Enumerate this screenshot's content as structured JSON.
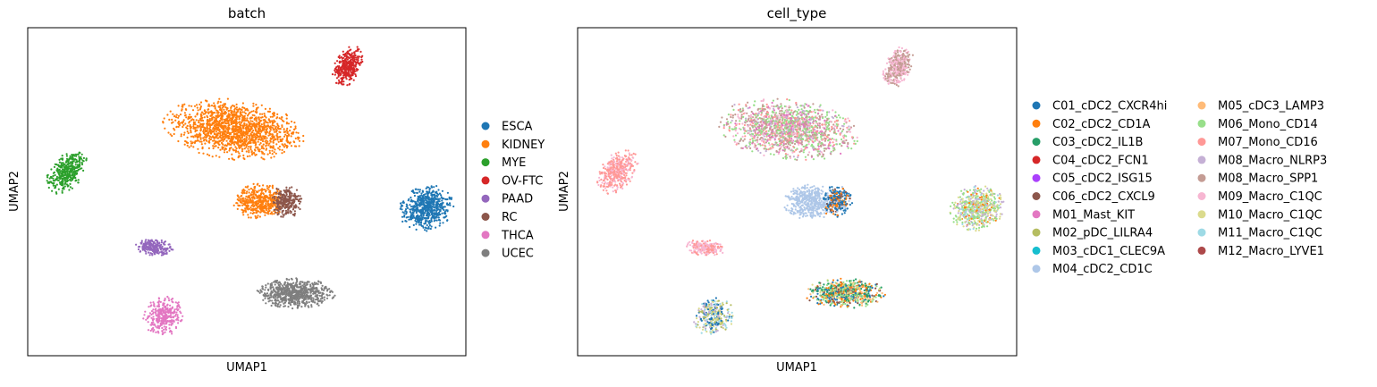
{
  "chart_data": [
    {
      "type": "scatter",
      "title": "batch",
      "xlabel": "UMAP1",
      "ylabel": "UMAP2",
      "xlim": [
        0,
        10
      ],
      "ylim": [
        0,
        10
      ],
      "grid": false,
      "ticks": false,
      "legend": "right",
      "series": [
        {
          "name": "ESCA",
          "color": "#1f77b4",
          "clusters": [
            {
              "cx": 9.1,
              "cy": 4.5,
              "rx": 0.6,
              "ry": 0.7,
              "rot": -20,
              "n": 600
            }
          ]
        },
        {
          "name": "KIDNEY",
          "color": "#ff7f0e",
          "clusters": [
            {
              "cx": 4.7,
              "cy": 6.9,
              "rx": 1.6,
              "ry": 0.9,
              "rot": -10,
              "n": 1500
            },
            {
              "cx": 5.3,
              "cy": 4.7,
              "rx": 0.6,
              "ry": 0.55,
              "rot": 0,
              "n": 450
            }
          ]
        },
        {
          "name": "MYE",
          "color": "#2ca02c",
          "clusters": [
            {
              "cx": 0.9,
              "cy": 5.6,
              "rx": 0.4,
              "ry": 0.7,
              "rot": -25,
              "n": 380
            }
          ]
        },
        {
          "name": "OV-FTC",
          "color": "#d62728",
          "clusters": [
            {
              "cx": 7.3,
              "cy": 8.8,
              "rx": 0.3,
              "ry": 0.65,
              "rot": -15,
              "n": 360
            }
          ]
        },
        {
          "name": "PAAD",
          "color": "#9467bd",
          "clusters": [
            {
              "cx": 2.9,
              "cy": 3.3,
              "rx": 0.45,
              "ry": 0.25,
              "rot": -10,
              "n": 220
            }
          ]
        },
        {
          "name": "RC",
          "color": "#8c564b",
          "clusters": [
            {
              "cx": 5.9,
              "cy": 4.7,
              "rx": 0.35,
              "ry": 0.5,
              "rot": 0,
              "n": 260
            }
          ]
        },
        {
          "name": "THCA",
          "color": "#e377c2",
          "clusters": [
            {
              "cx": 3.1,
              "cy": 1.2,
              "rx": 0.45,
              "ry": 0.6,
              "rot": -10,
              "n": 320
            }
          ]
        },
        {
          "name": "UCEC",
          "color": "#7f7f7f",
          "clusters": [
            {
              "cx": 6.1,
              "cy": 1.9,
              "rx": 0.9,
              "ry": 0.45,
              "rot": 0,
              "n": 700
            }
          ]
        }
      ]
    },
    {
      "type": "scatter",
      "title": "cell_type",
      "xlabel": "UMAP1",
      "ylabel": "UMAP2",
      "xlim": [
        0,
        10
      ],
      "ylim": [
        0,
        10
      ],
      "grid": false,
      "ticks": false,
      "legend": "right",
      "legend_columns": 2,
      "series": [
        {
          "name": "C01_cDC2_CXCR4hi",
          "color": "#1f77b4"
        },
        {
          "name": "C02_cDC2_CD1A",
          "color": "#ff7f0e"
        },
        {
          "name": "C03_cDC2_IL1B",
          "color": "#279e68"
        },
        {
          "name": "C04_cDC2_FCN1",
          "color": "#d62728"
        },
        {
          "name": "C05_cDC2_ISG15",
          "color": "#aa40fc"
        },
        {
          "name": "C06_cDC2_CXCL9",
          "color": "#8c564b"
        },
        {
          "name": "M01_Mast_KIT",
          "color": "#e377c2"
        },
        {
          "name": "M02_pDC_LILRA4",
          "color": "#b5bd61"
        },
        {
          "name": "M03_cDC1_CLEC9A",
          "color": "#17becf"
        },
        {
          "name": "M04_cDC2_CD1C",
          "color": "#aec7e8"
        },
        {
          "name": "M05_cDC3_LAMP3",
          "color": "#ffbb78"
        },
        {
          "name": "M06_Mono_CD14",
          "color": "#98df8a"
        },
        {
          "name": "M07_Mono_CD16",
          "color": "#ff9896"
        },
        {
          "name": "M08_Macro_NLRP3",
          "color": "#c5b0d5"
        },
        {
          "name": "M08_Macro_SPP1",
          "color": "#c49c94"
        },
        {
          "name": "M09_Macro_C1QC",
          "color": "#f7b6d2"
        },
        {
          "name": "M10_Macro_C1QC",
          "color": "#dbdb8d"
        },
        {
          "name": "M11_Macro_C1QC",
          "color": "#9edae5"
        },
        {
          "name": "M12_Macro_LYVE1",
          "color": "#ad494a"
        }
      ],
      "clusters": [
        {
          "cx": 7.3,
          "cy": 8.8,
          "rx": 0.3,
          "ry": 0.65,
          "rot": -15,
          "n": 380,
          "mix": [
            [
              14,
              0.5
            ],
            [
              15,
              0.5
            ]
          ]
        },
        {
          "cx": 4.8,
          "cy": 6.9,
          "rx": 1.6,
          "ry": 0.9,
          "rot": -10,
          "n": 1500,
          "mix": [
            [
              14,
              0.25
            ],
            [
              11,
              0.25
            ],
            [
              12,
              0.15
            ],
            [
              15,
              0.15
            ],
            [
              13,
              0.1
            ],
            [
              6,
              0.1
            ]
          ]
        },
        {
          "cx": 5.3,
          "cy": 4.7,
          "rx": 0.6,
          "ry": 0.55,
          "rot": 0,
          "n": 450,
          "mix": [
            [
              9,
              1
            ]
          ]
        },
        {
          "cx": 5.9,
          "cy": 4.7,
          "rx": 0.35,
          "ry": 0.5,
          "rot": 0,
          "n": 280,
          "mix": [
            [
              0,
              0.5
            ],
            [
              1,
              0.2
            ],
            [
              5,
              0.15
            ],
            [
              9,
              0.15
            ]
          ]
        },
        {
          "cx": 0.9,
          "cy": 5.6,
          "rx": 0.4,
          "ry": 0.7,
          "rot": -25,
          "n": 380,
          "mix": [
            [
              12,
              0.7
            ],
            [
              15,
              0.3
            ]
          ]
        },
        {
          "cx": 2.9,
          "cy": 3.3,
          "rx": 0.45,
          "ry": 0.25,
          "rot": -10,
          "n": 220,
          "mix": [
            [
              15,
              0.6
            ],
            [
              12,
              0.4
            ]
          ]
        },
        {
          "cx": 9.1,
          "cy": 4.5,
          "rx": 0.6,
          "ry": 0.7,
          "rot": -20,
          "n": 600,
          "mix": [
            [
              11,
              0.3
            ],
            [
              16,
              0.25
            ],
            [
              13,
              0.2
            ],
            [
              17,
              0.15
            ],
            [
              1,
              0.1
            ]
          ]
        },
        {
          "cx": 3.1,
          "cy": 1.2,
          "rx": 0.45,
          "ry": 0.6,
          "rot": -10,
          "n": 320,
          "mix": [
            [
              0,
              0.2
            ],
            [
              7,
              0.2
            ],
            [
              16,
              0.2
            ],
            [
              17,
              0.2
            ],
            [
              13,
              0.2
            ]
          ]
        },
        {
          "cx": 6.1,
          "cy": 1.9,
          "rx": 0.9,
          "ry": 0.45,
          "rot": 0,
          "n": 700,
          "mix": [
            [
              2,
              0.2
            ],
            [
              11,
              0.2
            ],
            [
              1,
              0.15
            ],
            [
              0,
              0.15
            ],
            [
              5,
              0.1
            ],
            [
              16,
              0.1
            ],
            [
              10,
              0.1
            ]
          ]
        }
      ]
    }
  ]
}
